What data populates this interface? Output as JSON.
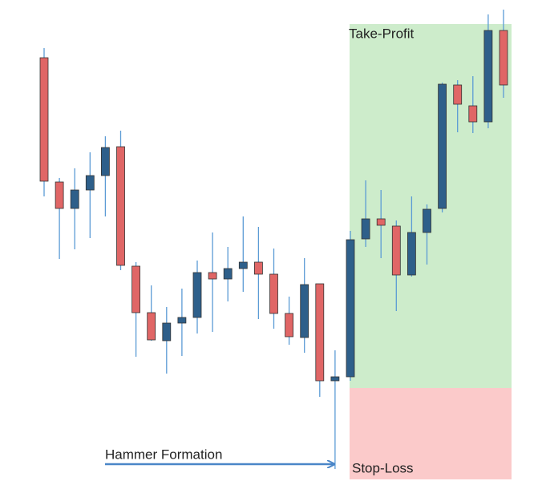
{
  "chart_data": {
    "type": "candlestick",
    "ylim": [
      0,
      600
    ],
    "up_color": "#2e5f8a",
    "down_color": "#e06666",
    "wick_color": "#5b9bd5",
    "open": [
      528,
      373,
      340,
      363,
      381,
      417,
      268,
      210,
      175,
      197,
      204,
      260,
      252,
      265,
      273,
      258,
      209,
      179,
      246,
      125,
      130,
      302,
      327,
      318,
      257,
      310,
      340,
      494,
      468,
      448,
      562
    ],
    "high": [
      540,
      378,
      390,
      410,
      430,
      437,
      273,
      244,
      217,
      240,
      275,
      310,
      292,
      330,
      317,
      290,
      230,
      278,
      246,
      163,
      312,
      375,
      363,
      325,
      355,
      345,
      497,
      500,
      505,
      582,
      588
    ],
    "low": [
      355,
      277,
      289,
      303,
      330,
      263,
      155,
      175,
      134,
      156,
      184,
      186,
      224,
      236,
      202,
      190,
      170,
      160,
      105,
      15,
      125,
      292,
      278,
      212,
      255,
      270,
      335,
      435,
      434,
      440,
      478
    ],
    "close": [
      374,
      340,
      363,
      381,
      416,
      269,
      210,
      176,
      197,
      204,
      260,
      252,
      265,
      273,
      258,
      209,
      180,
      245,
      125,
      130,
      301,
      327,
      319,
      257,
      310,
      339,
      495,
      470,
      448,
      562,
      494
    ],
    "zones": [
      {
        "name": "Take-Profit",
        "color": "#cdeccb",
        "from": 116,
        "to": 570
      },
      {
        "name": "Stop-Loss",
        "color": "#fbcaca",
        "from": 2,
        "to": 116
      }
    ],
    "annotation": "Hammer Formation"
  }
}
